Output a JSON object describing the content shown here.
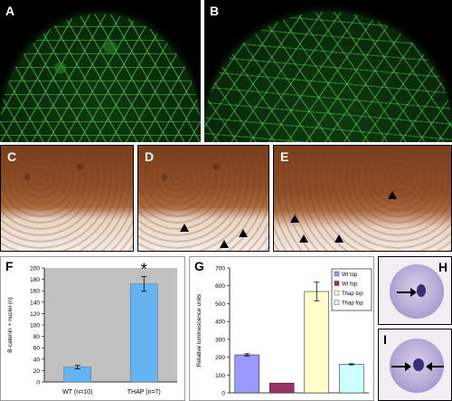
{
  "panels": {
    "a": "A",
    "b": "B",
    "c": "C",
    "d": "D",
    "e": "E",
    "f": "F",
    "g": "G",
    "h": "H",
    "i": "I"
  },
  "chart_f": {
    "type": "bar",
    "categories": [
      "WT (n=10)",
      "THAP (n=7)"
    ],
    "values": [
      26,
      172
    ],
    "errors": [
      3,
      13
    ],
    "ylabel": "B-catenin + nuclei (n)",
    "ylim": [
      0,
      200
    ],
    "yticks": [
      0,
      20,
      40,
      60,
      80,
      100,
      120,
      140,
      160,
      180,
      200
    ],
    "significance": "*",
    "significance_on": "THAP (n=7)",
    "bar_color": "#66b3f2"
  },
  "chart_g": {
    "type": "bar",
    "categories": [
      "Wt top",
      "Wt fop",
      "Thap top",
      "Thap fop"
    ],
    "values": [
      213,
      55,
      568,
      160
    ],
    "errors": [
      6,
      0,
      52,
      3
    ],
    "ylabel": "Relative luminescence units",
    "ylim": [
      0,
      700
    ],
    "yticks": [
      0,
      100,
      200,
      300,
      400,
      500,
      600,
      700
    ],
    "legend_position": "top-right",
    "colors": [
      "#9999ff",
      "#993366",
      "#ffffcc",
      "#ccffff"
    ]
  }
}
